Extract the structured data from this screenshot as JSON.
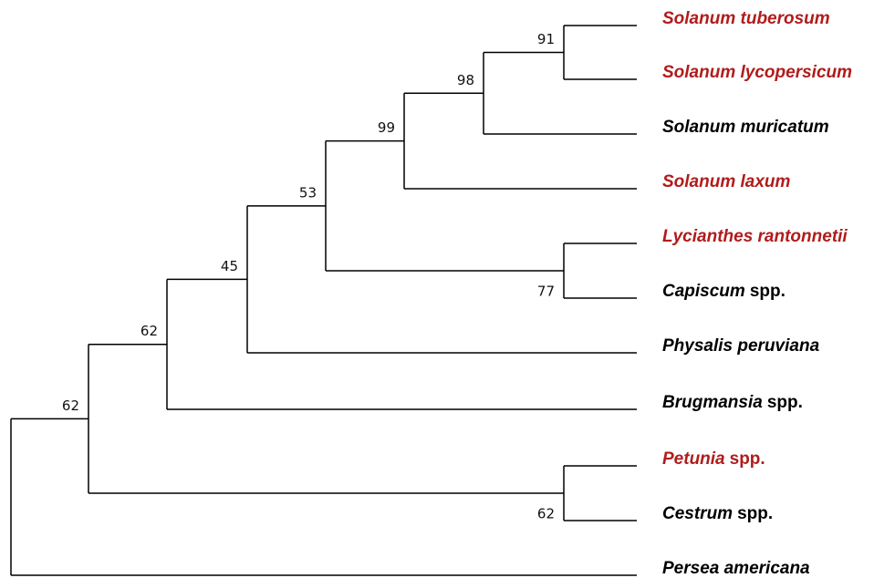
{
  "leaves": [
    {
      "name": "Solanum tuberosum",
      "color": "#b01c1c"
    },
    {
      "name": "Solanum lycopersicum",
      "color": "#b01c1c"
    },
    {
      "name": "Solanum muricatum",
      "color": "#000000"
    },
    {
      "name": "Solanum laxum",
      "color": "#b01c1c"
    },
    {
      "name": "Lycianthes rantonnetii",
      "color": "#b01c1c"
    },
    {
      "name": "Capiscum",
      "suffix": "spp.",
      "color": "#000000"
    },
    {
      "name": "Physalis peruviana",
      "color": "#000000"
    },
    {
      "name": "Brugmansia",
      "suffix": "spp.",
      "color": "#000000"
    },
    {
      "name": "Petunia",
      "suffix": "spp.",
      "color": "#b01c1c"
    },
    {
      "name": "Cestrum",
      "suffix": "spp.",
      "color": "#000000"
    },
    {
      "name": "Persea americana",
      "color": "#000000"
    }
  ],
  "nodes": [
    {
      "support": 91
    },
    {
      "support": 98
    },
    {
      "support": 99
    },
    {
      "support": 77
    },
    {
      "support": 53
    },
    {
      "support": 45
    },
    {
      "support": 62
    },
    {
      "support": 62
    },
    {
      "support": 62
    }
  ]
}
